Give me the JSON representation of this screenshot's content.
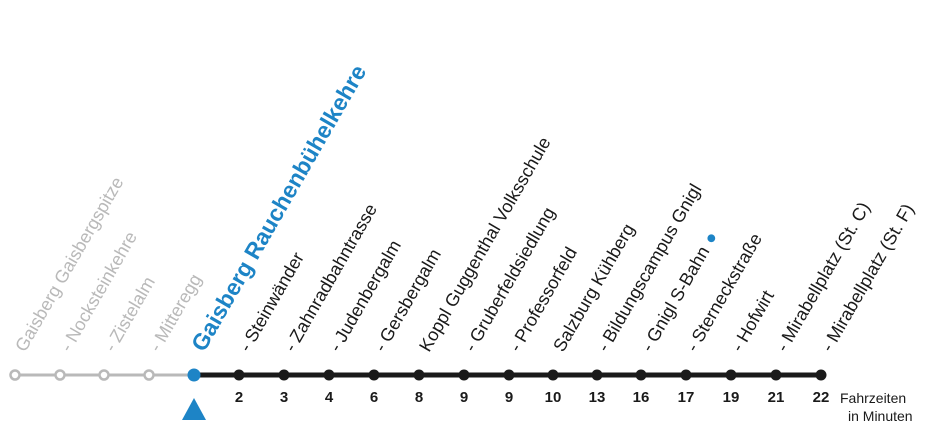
{
  "colors": {
    "past": "#b9b9b9",
    "current": "#1d84c6",
    "next": "#1a1a1a"
  },
  "stops": [
    {
      "name": "Gaisberg Gaisbergspitze",
      "state": "past",
      "minutes": ""
    },
    {
      "name": "- Nocksteinkehre",
      "state": "past",
      "minutes": ""
    },
    {
      "name": "- Zistelalm",
      "state": "past",
      "minutes": ""
    },
    {
      "name": "- Mitteregg",
      "state": "past",
      "minutes": ""
    },
    {
      "name": "Gaisberg Rauchenbühelkehre",
      "state": "current",
      "minutes": ""
    },
    {
      "name": "- Steinwänder",
      "state": "next",
      "minutes": "2"
    },
    {
      "name": "- Zahnradbahntrasse",
      "state": "next",
      "minutes": "3"
    },
    {
      "name": "- Judenbergalm",
      "state": "next",
      "minutes": "4"
    },
    {
      "name": "- Gersbergalm",
      "state": "next",
      "minutes": "6"
    },
    {
      "name": "Koppl Guggenthal Volksschule",
      "state": "next",
      "minutes": "8"
    },
    {
      "name": "- Gruberfeldsiedlung",
      "state": "next",
      "minutes": "9"
    },
    {
      "name": "- Professorfeld",
      "state": "next",
      "minutes": "9"
    },
    {
      "name": "Salzburg Kühberg",
      "state": "next",
      "minutes": "10"
    },
    {
      "name": "- Bildungscampus Gnigl",
      "state": "next",
      "minutes": "13"
    },
    {
      "name": "- Gnigl S-Bahn",
      "state": "next",
      "minutes": "16",
      "icon": "s-bahn-icon"
    },
    {
      "name": "- Sterneckstraße",
      "state": "next",
      "minutes": "17"
    },
    {
      "name": "- Hofwirt",
      "state": "next",
      "minutes": "19"
    },
    {
      "name": "- Mirabellplatz (St. C)",
      "state": "next",
      "minutes": "21"
    },
    {
      "name": "- Mirabellplatz (St. F)",
      "state": "next",
      "minutes": "22"
    }
  ],
  "travel_time_label": [
    "Fahrzeiten",
    "in Minuten"
  ],
  "current_marker_icon": "triangle-up-icon"
}
